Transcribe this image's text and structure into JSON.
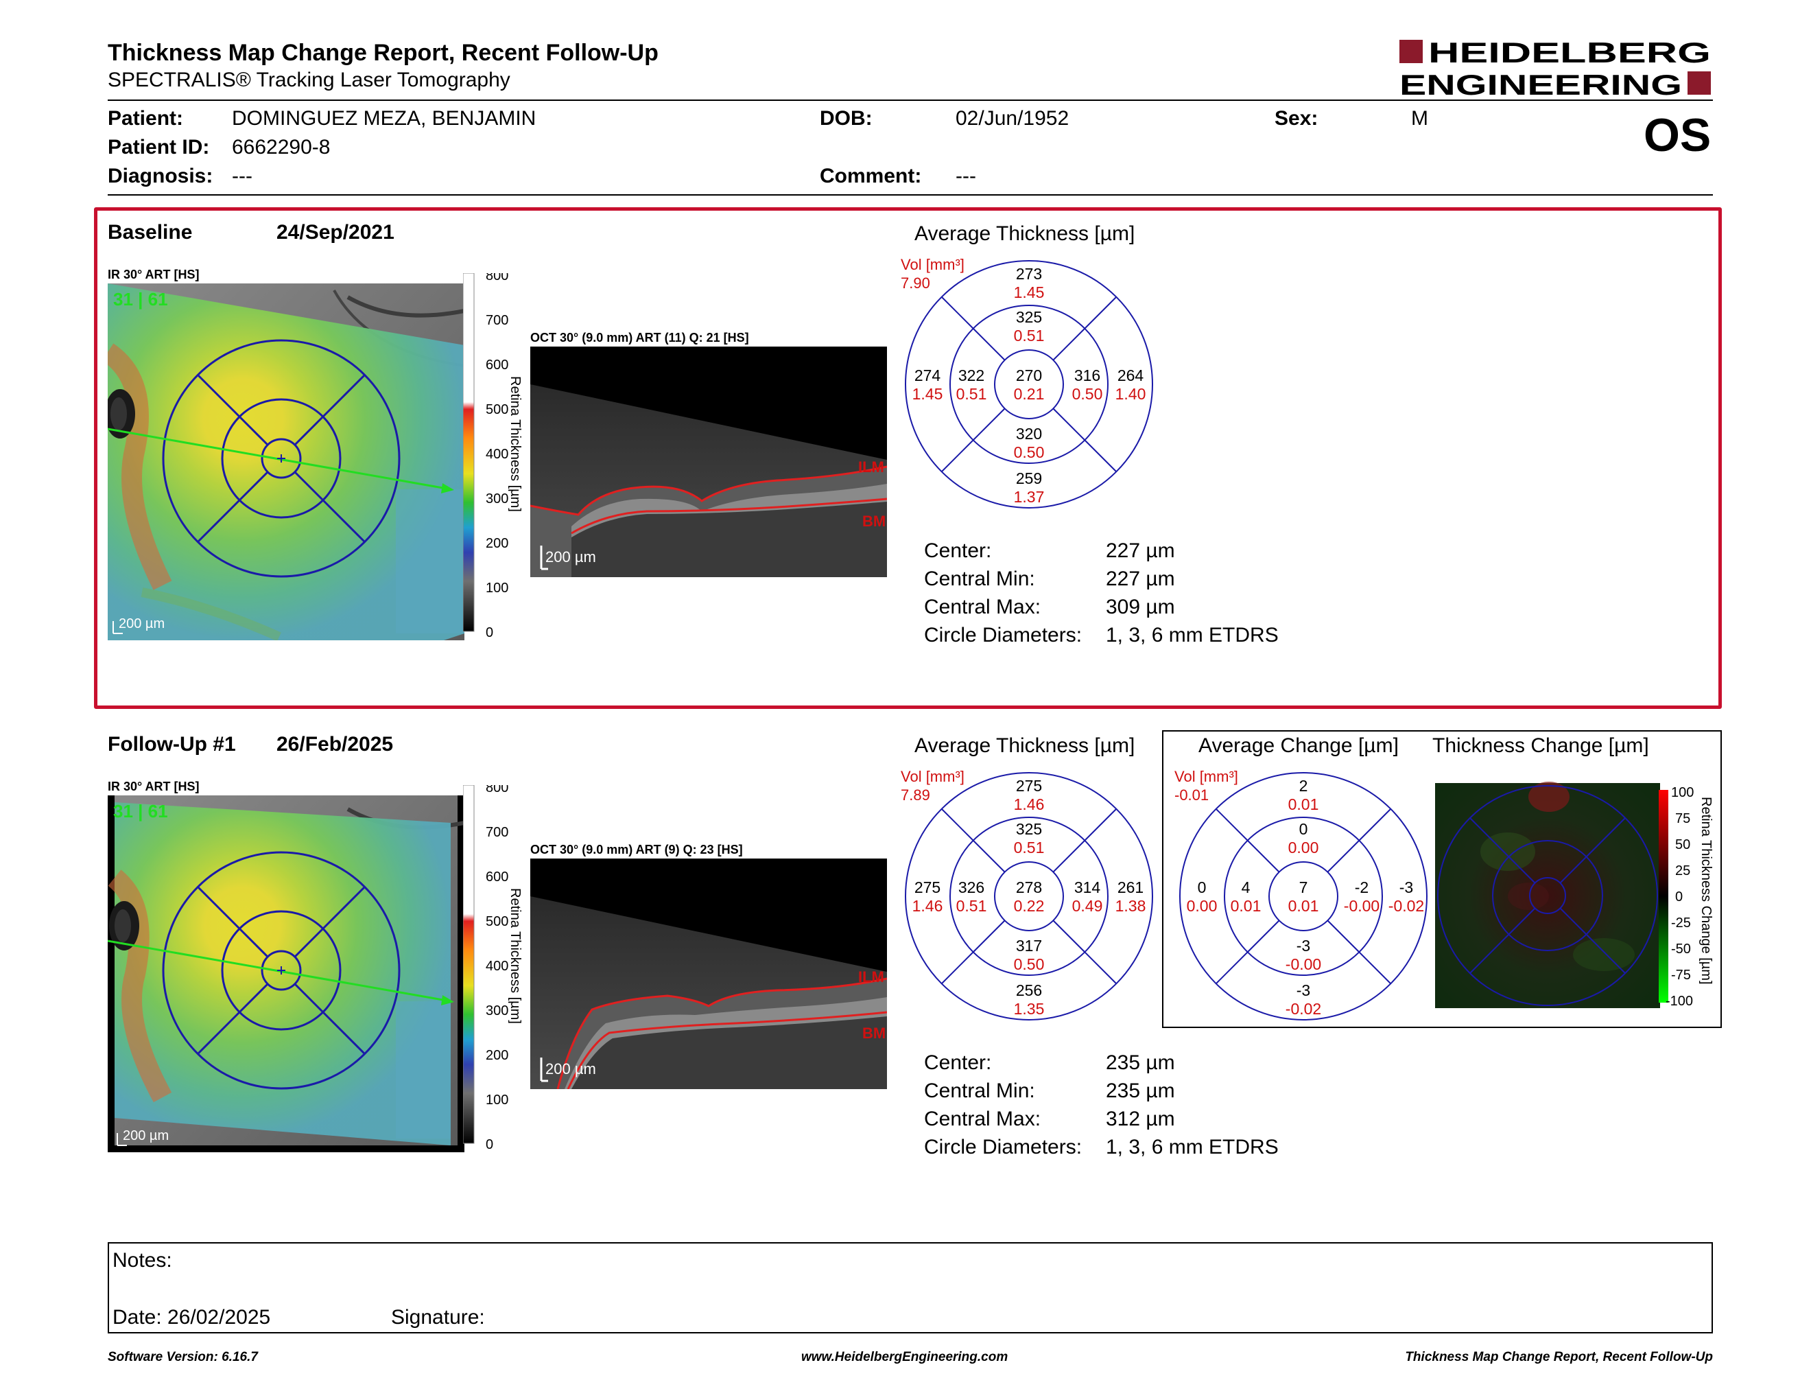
{
  "header": {
    "title": "Thickness Map Change Report, Recent Follow-Up",
    "subtitle": "SPECTRALIS® Tracking Laser Tomography",
    "logo_line1": "HEIDELBERG",
    "logo_line2": "ENGINEERING",
    "eye": "OS"
  },
  "patient": {
    "name_label": "Patient:",
    "name": "DOMINGUEZ MEZA, BENJAMIN",
    "id_label": "Patient ID:",
    "id": "6662290-8",
    "diagnosis_label": "Diagnosis:",
    "diagnosis": "---",
    "dob_label": "DOB:",
    "dob": "02/Jun/1952",
    "comment_label": "Comment:",
    "comment": "---",
    "sex_label": "Sex:",
    "sex": "M"
  },
  "baseline": {
    "label": "Baseline",
    "date": "24/Sep/2021",
    "ir_label": "IR 30° ART [HS]",
    "ir_quality": "31 | 61",
    "oct_label": "OCT 30° (9.0 mm) ART (11) Q: 21 [HS]",
    "scale_ir": "200 µm",
    "scale_oct": "200 µm",
    "ilm": "ILM",
    "bm": "BM",
    "colorbar_title": "Retina Thickness [µm]",
    "colorbar_ticks": [
      "800",
      "700",
      "600",
      "500",
      "400",
      "300",
      "200",
      "100",
      "0"
    ],
    "avg_title": "Average Thickness [µm]",
    "vol_label": "Vol [mm³]",
    "vol_total": "7.90",
    "etdrs": {
      "outer_superior": {
        "t": "273",
        "v": "1.45"
      },
      "inner_superior": {
        "t": "325",
        "v": "0.51"
      },
      "outer_temporal": {
        "t": "274",
        "v": "1.45"
      },
      "inner_temporal": {
        "t": "322",
        "v": "0.51"
      },
      "center": {
        "t": "270",
        "v": "0.21"
      },
      "inner_nasal": {
        "t": "316",
        "v": "0.50"
      },
      "outer_nasal": {
        "t": "264",
        "v": "1.40"
      },
      "inner_inferior": {
        "t": "320",
        "v": "0.50"
      },
      "outer_inferior": {
        "t": "259",
        "v": "1.37"
      }
    },
    "stats": [
      {
        "label": "Center:",
        "value": "227 µm"
      },
      {
        "label": "Central Min:",
        "value": "227 µm"
      },
      {
        "label": "Central Max:",
        "value": "309 µm"
      },
      {
        "label": "Circle Diameters:",
        "value": "1, 3, 6 mm ETDRS"
      }
    ]
  },
  "followup": {
    "label": "Follow-Up #1",
    "date": "26/Feb/2025",
    "ir_label": "IR 30° ART [HS]",
    "ir_quality": "31 | 61",
    "oct_label": "OCT 30° (9.0 mm) ART (9) Q: 23 [HS]",
    "scale_ir": "200 µm",
    "scale_oct": "200 µm",
    "ilm": "ILM",
    "bm": "BM",
    "colorbar_title": "Retina Thickness [µm]",
    "colorbar_ticks": [
      "800",
      "700",
      "600",
      "500",
      "400",
      "300",
      "200",
      "100",
      "0"
    ],
    "avg_title": "Average Thickness [µm]",
    "vol_label": "Vol [mm³]",
    "vol_total": "7.89",
    "etdrs": {
      "outer_superior": {
        "t": "275",
        "v": "1.46"
      },
      "inner_superior": {
        "t": "325",
        "v": "0.51"
      },
      "outer_temporal": {
        "t": "275",
        "v": "1.46"
      },
      "inner_temporal": {
        "t": "326",
        "v": "0.51"
      },
      "center": {
        "t": "278",
        "v": "0.22"
      },
      "inner_nasal": {
        "t": "314",
        "v": "0.49"
      },
      "outer_nasal": {
        "t": "261",
        "v": "1.38"
      },
      "inner_inferior": {
        "t": "317",
        "v": "0.50"
      },
      "outer_inferior": {
        "t": "256",
        "v": "1.35"
      }
    },
    "stats": [
      {
        "label": "Center:",
        "value": "235 µm"
      },
      {
        "label": "Central Min:",
        "value": "235 µm"
      },
      {
        "label": "Central Max:",
        "value": "312 µm"
      },
      {
        "label": "Circle Diameters:",
        "value": "1, 3, 6 mm ETDRS"
      }
    ],
    "change_title": "Average Change [µm]",
    "change_vol_label": "Vol [mm³]",
    "change_vol_total": "-0.01",
    "change": {
      "outer_superior": {
        "t": "2",
        "v": "0.01"
      },
      "inner_superior": {
        "t": "0",
        "v": "0.00"
      },
      "outer_temporal": {
        "t": "0",
        "v": "0.00"
      },
      "inner_temporal": {
        "t": "4",
        "v": "0.01"
      },
      "center": {
        "t": "7",
        "v": "0.01"
      },
      "inner_nasal": {
        "t": "-2",
        "v": "-0.00"
      },
      "outer_nasal": {
        "t": "-3",
        "v": "-0.02"
      },
      "inner_inferior": {
        "t": "-3",
        "v": "-0.00"
      },
      "outer_inferior": {
        "t": "-3",
        "v": "-0.02"
      }
    },
    "thickness_change_title": "Thickness Change [µm]",
    "change_colorbar_title": "Retina Thickness Change [µm]",
    "change_colorbar_ticks": [
      "100",
      "75",
      "50",
      "25",
      "0",
      "-25",
      "-50",
      "-75",
      "-100"
    ]
  },
  "notes": {
    "notes_label": "Notes:",
    "date_label": "Date: 26/02/2025",
    "signature_label": "Signature:"
  },
  "footer": {
    "left": "Software Version: 6.16.7",
    "center": "www.HeidelbergEngineering.com",
    "right": "Thickness Map Change Report, Recent Follow-Up"
  },
  "colors": {
    "accent_red": "#c8102e",
    "grid_blue": "#1a1aa8",
    "volume_red": "#d01010",
    "scan_green": "#22dd22"
  }
}
